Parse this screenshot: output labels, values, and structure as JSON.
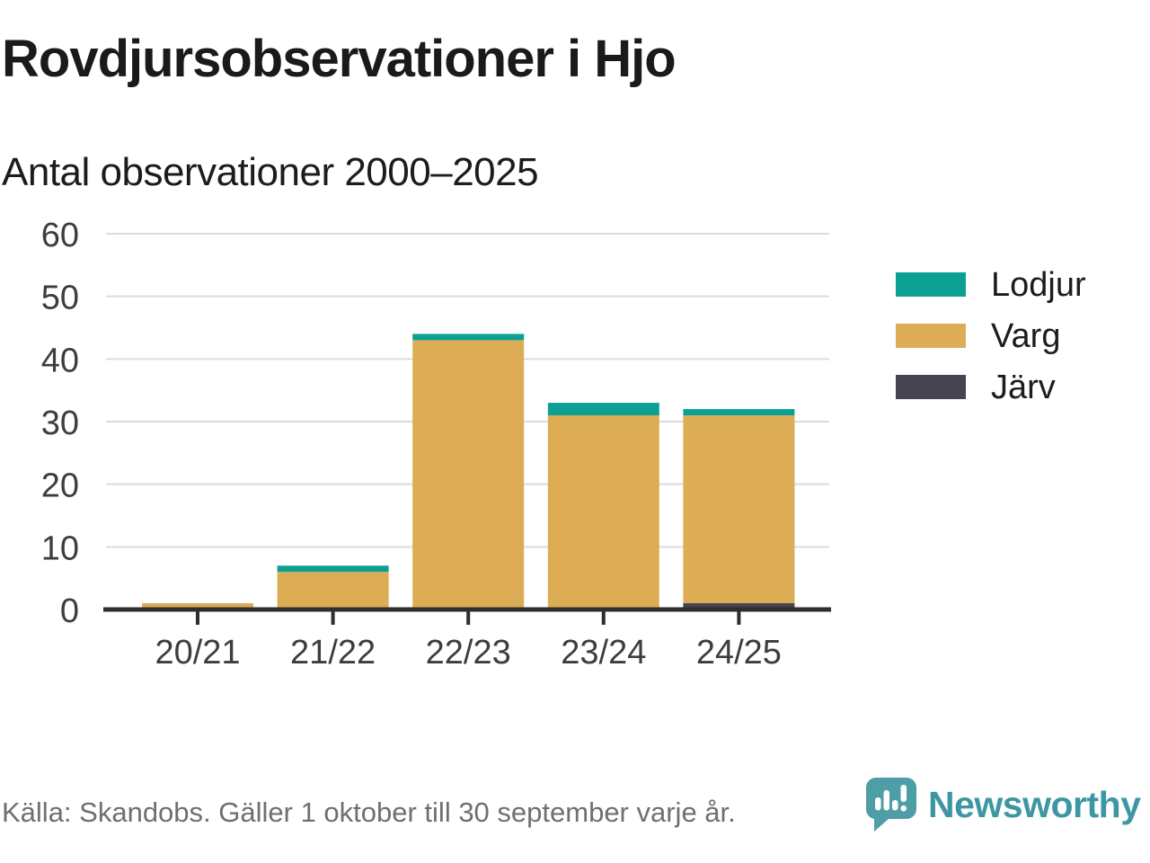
{
  "title": "Rovdjursobservationer i Hjo",
  "subtitle": "Antal observationer 2000–2025",
  "footer": {
    "source_text": "Källa: Skandobs. Gäller 1 oktober till 30 september varje år."
  },
  "branding": {
    "name": "Newsworthy",
    "icon": "speech-bubble-bar-chart-icon",
    "icon_color": "#4e9ea7",
    "text_color": "#3d97a3"
  },
  "colors": {
    "lodjur": "#0ba093",
    "varg": "#ddad55",
    "jarv": "#474350",
    "grid": "#dcdcdc",
    "axis": "#2e2e2e",
    "tick_label": "#3d3d3d"
  },
  "chart_data": {
    "type": "bar",
    "stacked": true,
    "title": "Rovdjursobservationer i Hjo",
    "subtitle": "Antal observationer 2000–2025",
    "categories": [
      "20/21",
      "21/22",
      "22/23",
      "23/24",
      "24/25"
    ],
    "series": [
      {
        "name": "Järv",
        "color_key": "jarv",
        "values": [
          0,
          0,
          0,
          0,
          1
        ]
      },
      {
        "name": "Varg",
        "color_key": "varg",
        "values": [
          1,
          6,
          43,
          31,
          30
        ]
      },
      {
        "name": "Lodjur",
        "color_key": "lodjur",
        "values": [
          0,
          1,
          1,
          2,
          1
        ]
      }
    ],
    "totals": [
      1,
      7,
      44,
      33,
      32
    ],
    "legend": [
      {
        "label": "Lodjur",
        "color_key": "lodjur"
      },
      {
        "label": "Varg",
        "color_key": "varg"
      },
      {
        "label": "Järv",
        "color_key": "jarv"
      }
    ],
    "legend_position": "right",
    "y_ticks": [
      0,
      10,
      20,
      30,
      40,
      50,
      60
    ],
    "ylim": [
      0,
      60
    ],
    "xlabel": "",
    "ylabel": "",
    "grid": true
  }
}
